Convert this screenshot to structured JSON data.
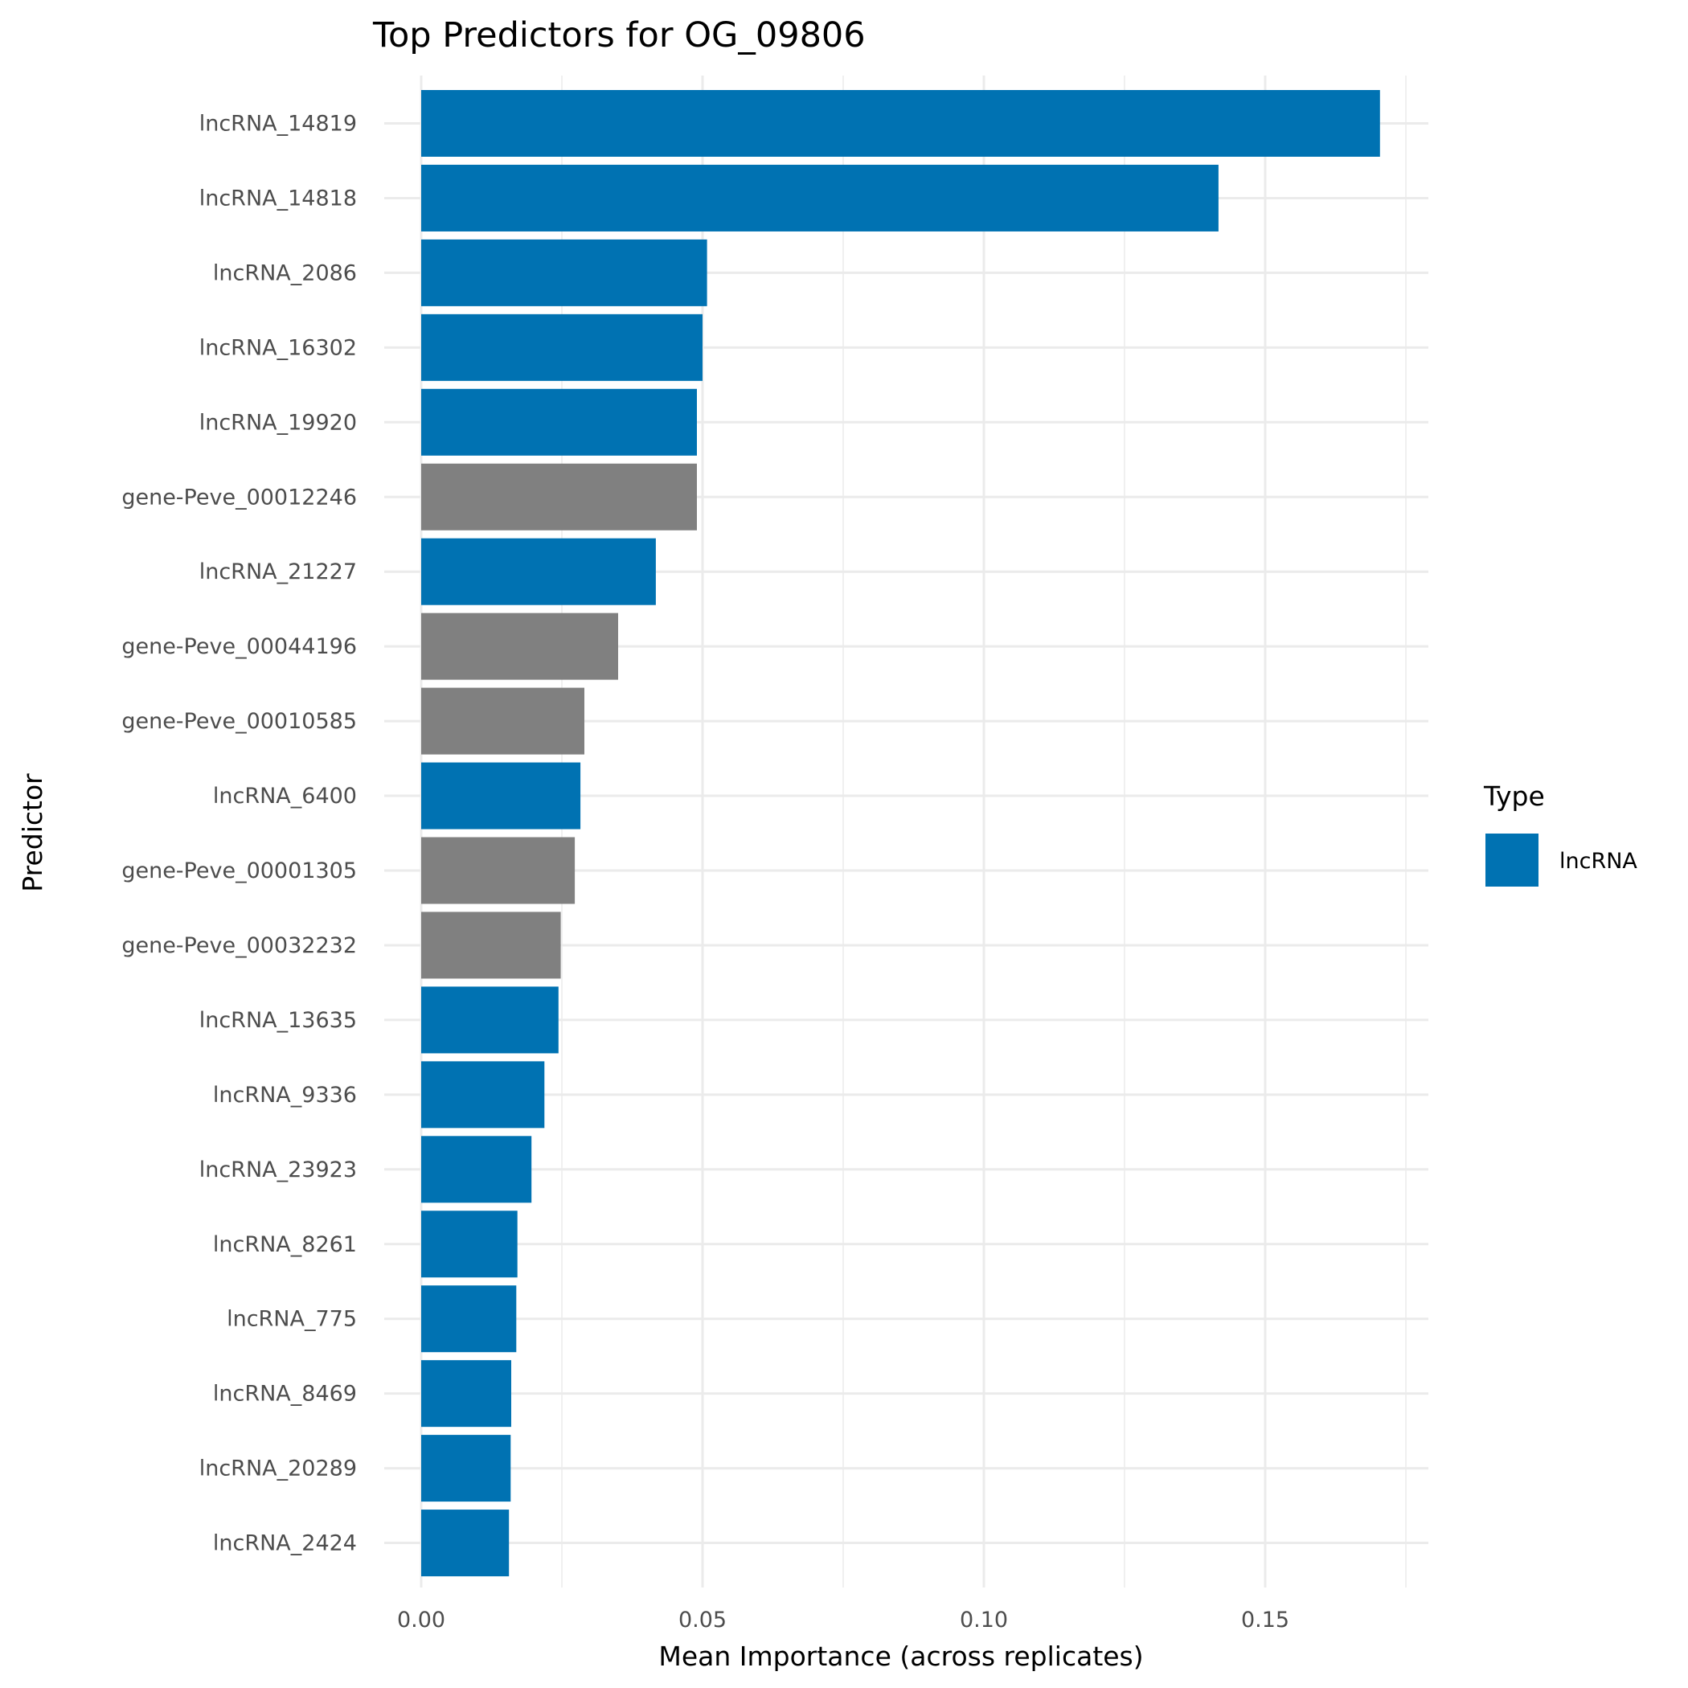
{
  "chart_data": {
    "type": "bar",
    "orientation": "horizontal",
    "title": "Top Predictors for OG_09806",
    "xlabel": "Mean Importance (across replicates)",
    "ylabel": "Predictor",
    "xlim": [
      0,
      0.178
    ],
    "xticks": [
      0,
      0.05,
      0.1,
      0.15
    ],
    "xtick_labels": [
      "0.00",
      "0.05",
      "0.10",
      "0.15"
    ],
    "grid": true,
    "legend": {
      "title": "Type",
      "placement": "right",
      "entries": [
        {
          "label": "lncRNA",
          "color": "#0072B2"
        }
      ]
    },
    "colors": {
      "lncRNA": "#0072B2",
      "gene": "#808080"
    },
    "categories": [
      "lncRNA_14819",
      "lncRNA_14818",
      "lncRNA_2086",
      "lncRNA_16302",
      "lncRNA_19920",
      "gene-Peve_00012246",
      "lncRNA_21227",
      "gene-Peve_00044196",
      "gene-Peve_00010585",
      "lncRNA_6400",
      "gene-Peve_00001305",
      "gene-Peve_00032232",
      "lncRNA_13635",
      "lncRNA_9336",
      "lncRNA_23923",
      "lncRNA_8261",
      "lncRNA_775",
      "lncRNA_8469",
      "lncRNA_20289",
      "lncRNA_2424"
    ],
    "types": [
      "lncRNA",
      "lncRNA",
      "lncRNA",
      "lncRNA",
      "lncRNA",
      "gene",
      "lncRNA",
      "gene",
      "gene",
      "lncRNA",
      "gene",
      "gene",
      "lncRNA",
      "lncRNA",
      "lncRNA",
      "lncRNA",
      "lncRNA",
      "lncRNA",
      "lncRNA",
      "lncRNA"
    ],
    "values": [
      0.1704,
      0.1417,
      0.0508,
      0.05,
      0.049,
      0.049,
      0.0417,
      0.035,
      0.029,
      0.0283,
      0.0273,
      0.0248,
      0.0244,
      0.0219,
      0.0196,
      0.0171,
      0.0169,
      0.016,
      0.0159,
      0.0156
    ]
  }
}
